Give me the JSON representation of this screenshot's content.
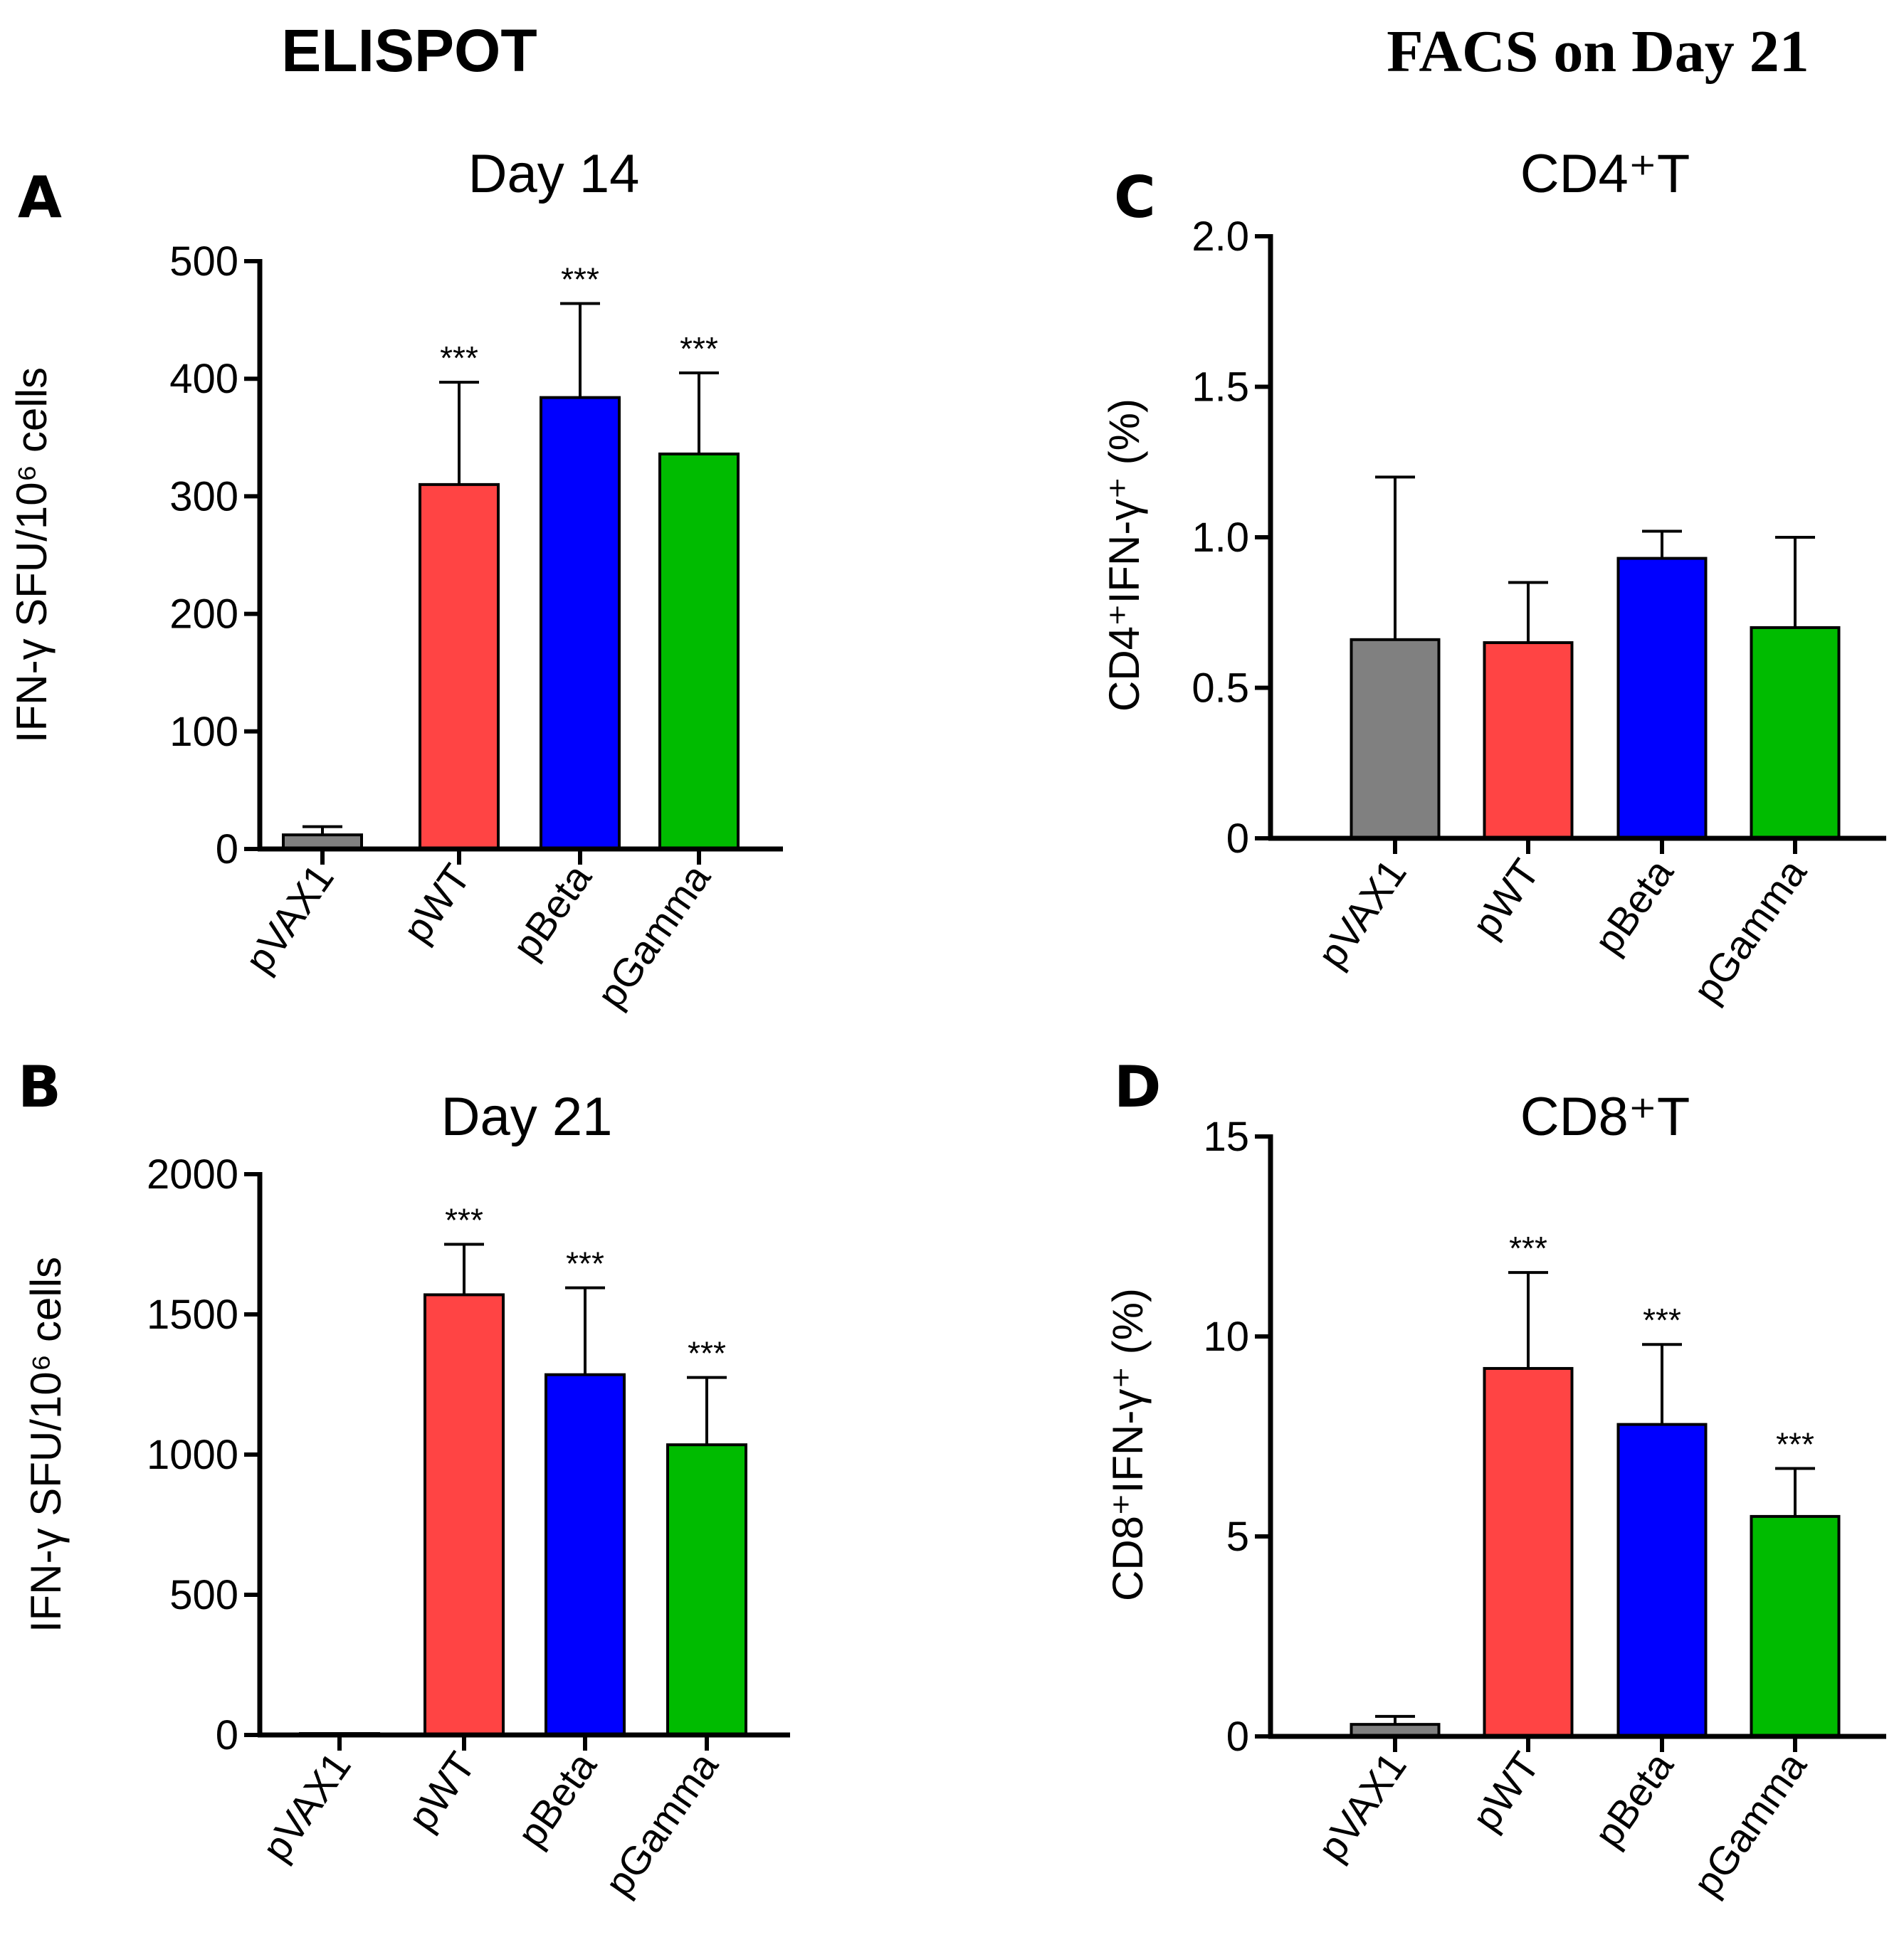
{
  "sections": {
    "left": "ELISPOT",
    "right": "FACS on Day 21"
  },
  "chart_data": [
    {
      "panel": "A",
      "type": "bar",
      "title": "Day 14",
      "ylabel": "IFN-γ SFU/10⁶ cells",
      "categories": [
        "pVAX1",
        "pWT",
        "pBeta",
        "pGamma"
      ],
      "values": [
        12,
        310,
        384,
        336
      ],
      "errors": [
        7,
        87,
        80,
        69
      ],
      "colors": [
        "#808080",
        "#ff4444",
        "#0000ff",
        "#00bb00"
      ],
      "significance": [
        "",
        "***",
        "***",
        "***"
      ],
      "ylim": [
        0,
        500
      ],
      "yticks": [
        0,
        100,
        200,
        300,
        400,
        500
      ]
    },
    {
      "panel": "B",
      "type": "bar",
      "title": "Day 21",
      "ylabel": "IFN-γ SFU/10⁶ cells",
      "categories": [
        "pVAX1",
        "pWT",
        "pBeta",
        "pGamma"
      ],
      "values": [
        5,
        1570,
        1285,
        1035
      ],
      "errors": [
        0,
        180,
        310,
        240
      ],
      "colors": [
        "#b0b0b0",
        "#ff4444",
        "#0000ff",
        "#00bb00"
      ],
      "significance": [
        "",
        "***",
        "***",
        "***"
      ],
      "ylim": [
        0,
        2000
      ],
      "yticks": [
        0,
        500,
        1000,
        1500,
        2000
      ]
    },
    {
      "panel": "C",
      "type": "bar",
      "title": "CD4⁺T",
      "ylabel": "CD4⁺IFN-γ⁺ (%)",
      "categories": [
        "pVAX1",
        "pWT",
        "pBeta",
        "pGamma"
      ],
      "values": [
        0.66,
        0.65,
        0.93,
        0.7
      ],
      "errors": [
        0.54,
        0.2,
        0.09,
        0.3
      ],
      "colors": [
        "#808080",
        "#ff4444",
        "#0000ff",
        "#00bb00"
      ],
      "significance": [
        "",
        "",
        "",
        ""
      ],
      "ylim": [
        0,
        2.0
      ],
      "yticks": [
        0,
        0.5,
        1.0,
        1.5,
        2.0
      ],
      "ytick_labels": [
        "0",
        "0.5",
        "1.0",
        "1.5",
        "2.0"
      ]
    },
    {
      "panel": "D",
      "type": "bar",
      "title": "CD8⁺T",
      "ylabel": "CD8⁺IFN-γ⁺ (%)",
      "categories": [
        "pVAX1",
        "pWT",
        "pBeta",
        "pGamma"
      ],
      "values": [
        0.3,
        9.2,
        7.8,
        5.5
      ],
      "errors": [
        0.2,
        2.4,
        2.0,
        1.2
      ],
      "colors": [
        "#808080",
        "#ff4444",
        "#0000ff",
        "#00bb00"
      ],
      "significance": [
        "",
        "***",
        "***",
        "***"
      ],
      "ylim": [
        0,
        15
      ],
      "yticks": [
        0,
        5,
        10,
        15
      ]
    }
  ]
}
